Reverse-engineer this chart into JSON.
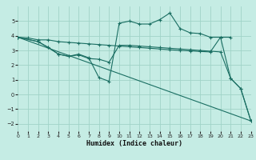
{
  "xlabel": "Humidex (Indice chaleur)",
  "bg_color": "#c5ece4",
  "grid_color": "#a0d4c8",
  "line_color": "#1a6e62",
  "xlim": [
    0,
    23
  ],
  "ylim": [
    -2.5,
    6.0
  ],
  "xticks": [
    0,
    1,
    2,
    3,
    4,
    5,
    6,
    7,
    8,
    9,
    10,
    11,
    12,
    13,
    14,
    15,
    16,
    17,
    18,
    19,
    20,
    21,
    22,
    23
  ],
  "yticks": [
    -2,
    -1,
    0,
    1,
    2,
    3,
    4,
    5
  ],
  "line1_x": [
    0,
    1,
    2,
    3,
    4,
    5,
    6,
    7,
    8,
    9,
    10,
    11,
    12,
    13,
    14,
    15,
    16,
    17,
    18,
    19,
    20,
    21
  ],
  "line1_y": [
    3.9,
    3.85,
    3.72,
    3.72,
    3.6,
    3.55,
    3.5,
    3.45,
    3.4,
    3.35,
    3.3,
    3.25,
    3.2,
    3.15,
    3.1,
    3.05,
    3.0,
    2.97,
    2.93,
    2.9,
    3.9,
    3.9
  ],
  "line2_x": [
    0,
    2,
    3,
    4,
    5,
    6,
    7,
    8,
    9,
    10,
    11,
    12,
    13,
    14,
    15,
    16,
    17,
    18,
    19,
    20,
    21,
    22,
    23
  ],
  "line2_y": [
    3.9,
    3.6,
    3.2,
    2.75,
    2.6,
    2.75,
    2.5,
    1.15,
    0.9,
    4.85,
    5.0,
    4.8,
    4.8,
    5.1,
    5.55,
    4.5,
    4.2,
    4.15,
    3.9,
    3.9,
    1.1,
    0.4,
    -1.8
  ],
  "line3_x": [
    0,
    2,
    3,
    4,
    5,
    6,
    7,
    8,
    9,
    10,
    11,
    12,
    13,
    14,
    15,
    16,
    17,
    18,
    19,
    20,
    21,
    22,
    23
  ],
  "line3_y": [
    3.9,
    3.6,
    3.2,
    2.75,
    2.6,
    2.7,
    2.45,
    2.4,
    2.2,
    3.35,
    3.35,
    3.3,
    3.25,
    3.2,
    3.15,
    3.1,
    3.05,
    3.0,
    2.95,
    2.9,
    1.1,
    0.4,
    -1.8
  ],
  "line4_x": [
    0,
    23
  ],
  "line4_y": [
    3.9,
    -1.8
  ]
}
